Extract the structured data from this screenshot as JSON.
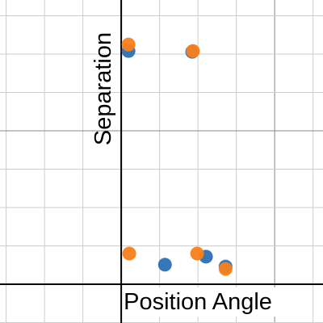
{
  "chart_data": {
    "type": "scatter",
    "x_label": "Position Angle",
    "y_label": "Separation",
    "xlim": [
      -3.16,
      5.26
    ],
    "ylim": [
      -1.01,
      7.41
    ],
    "xticks": [
      -3,
      -2,
      -1,
      0,
      1,
      2,
      3,
      4,
      5
    ],
    "yticks": [
      -1,
      0,
      1,
      2,
      3,
      4,
      5,
      6,
      7
    ],
    "grid": true,
    "tick_labels": false,
    "series": [
      {
        "color": "#2d70b3",
        "x": [
          0.19,
          1.85,
          1.14,
          2.21,
          2.72
        ],
        "values": [
          6.08,
          6.06,
          0.51,
          0.72,
          0.46
        ]
      },
      {
        "color": "#fa7e19",
        "x": [
          0.19,
          1.87,
          0.21,
          1.98,
          2.72
        ],
        "values": [
          6.25,
          6.08,
          0.8,
          0.8,
          0.4
        ]
      }
    ]
  }
}
